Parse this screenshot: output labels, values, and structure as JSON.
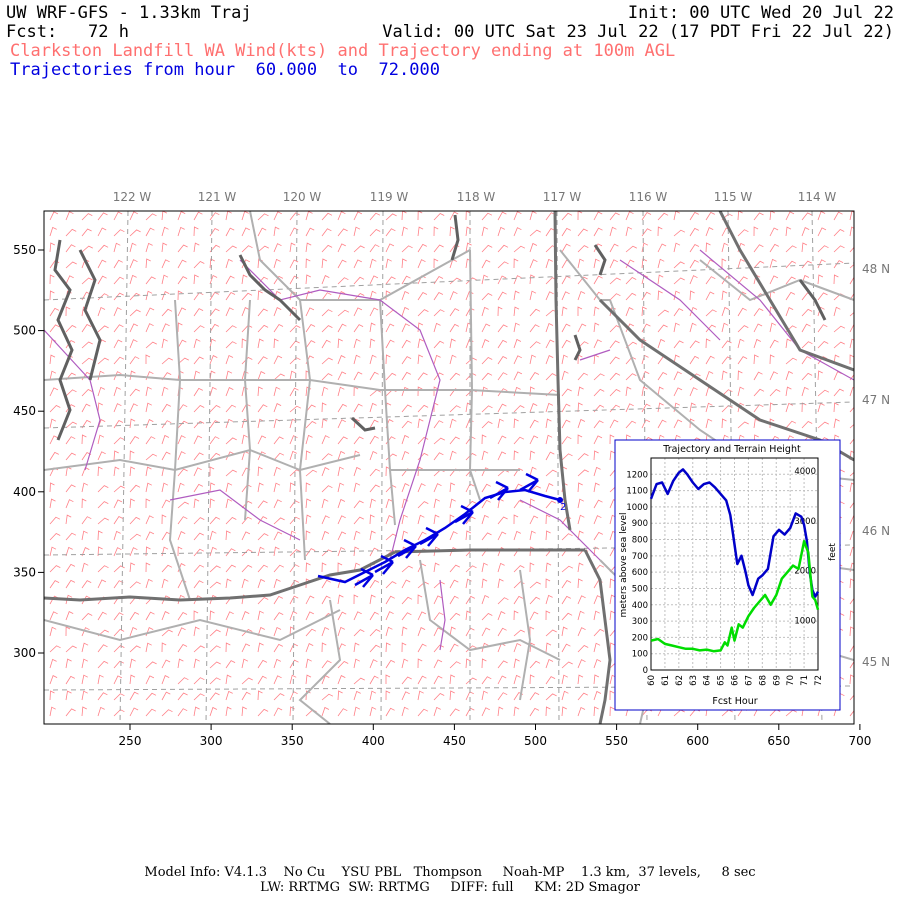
{
  "header": {
    "model_title": "UW WRF-GFS - 1.33km Traj",
    "init": "Init: 00 UTC Wed 20 Jul 22",
    "fcst_label": "Fcst:",
    "fcst_value": "72 h",
    "valid": "Valid: 00 UTC Sat 23 Jul 22 (17 PDT Fri 22 Jul 22)",
    "product": "Clarkston Landfill WA Wind(kts) and Trajectory ending at 100m AGL",
    "traj_prefix": "Trajectories from hour",
    "traj_from": "60.000",
    "traj_to_word": "to",
    "traj_to": "72.000"
  },
  "map": {
    "x_ticks": [
      "250",
      "300",
      "350",
      "400",
      "450",
      "500",
      "550",
      "600",
      "650",
      "700"
    ],
    "y_ticks": [
      "300",
      "350",
      "400",
      "450",
      "500",
      "550"
    ],
    "lon_labels": [
      "122 W",
      "121 W",
      "120 W",
      "119 W",
      "118 W",
      "117 W",
      "116 W",
      "115 W",
      "114 W"
    ],
    "lat_labels": [
      "45 N",
      "46 N",
      "47 N",
      "48 N"
    ],
    "colors": {
      "barbs": "#ff7f86",
      "counties": "#b0b0b0",
      "states": "#707070",
      "rivers": "#b05cc0",
      "trajectory": "#0000e0",
      "grid": "#a0a0a0"
    },
    "trajectory_endpoint_label": "2"
  },
  "inset": {
    "title": "Trajectory and Terrain Height",
    "ylabel_left": "meters above sea level",
    "ylabel_right": "feet",
    "xlabel": "Fcst Hour",
    "y_ticks_left": [
      "0",
      "100",
      "200",
      "300",
      "400",
      "500",
      "600",
      "700",
      "800",
      "900",
      "1000",
      "1100",
      "1200"
    ],
    "y_ticks_right": [
      "1000",
      "2000",
      "3000",
      "4000"
    ],
    "x_ticks": [
      "60",
      "61",
      "62",
      "63",
      "64",
      "65",
      "66",
      "67",
      "68",
      "69",
      "70",
      "71",
      "72"
    ],
    "trajectory_color": "#0000c8",
    "terrain_color": "#00dd00"
  },
  "chart_data": {
    "type": "line",
    "title": "Trajectory and Terrain Height",
    "xlabel": "Fcst Hour",
    "ylabel": "meters above sea level",
    "ylabel_right": "feet",
    "xlim": [
      60,
      72
    ],
    "ylim": [
      0,
      1300
    ],
    "series": [
      {
        "points_x": [
          60,
          60.4,
          60.8,
          61.2,
          61.6,
          62.0,
          62.3,
          62.6,
          63.0,
          63.4,
          63.8,
          64.2,
          64.6,
          65.0,
          65.4,
          65.7,
          66.0,
          66.2,
          66.5,
          66.8,
          67.0,
          67.3,
          67.7,
          68.0,
          68.4,
          68.8,
          69.2,
          69.6,
          70.0,
          70.4,
          70.8,
          71.0,
          71.2,
          71.4,
          71.6,
          71.8,
          72.0
        ],
        "values": [
          1050,
          1140,
          1150,
          1080,
          1160,
          1210,
          1230,
          1200,
          1150,
          1110,
          1140,
          1150,
          1120,
          1080,
          1040,
          950,
          770,
          650,
          700,
          600,
          520,
          460,
          560,
          580,
          620,
          820,
          860,
          830,
          870,
          960,
          940,
          890,
          790,
          600,
          490,
          450,
          480
        ]
      },
      {
        "points_x": [
          60,
          60.5,
          61,
          61.5,
          62,
          62.5,
          63,
          63.5,
          64,
          64.5,
          65,
          65.3,
          65.5,
          65.8,
          66.0,
          66.3,
          66.6,
          67.0,
          67.4,
          67.8,
          68.2,
          68.6,
          69.0,
          69.4,
          69.8,
          70.2,
          70.6,
          71.0,
          71.3,
          71.6,
          71.8,
          72.0
        ],
        "values": [
          180,
          190,
          160,
          150,
          140,
          130,
          130,
          120,
          125,
          115,
          120,
          170,
          150,
          260,
          180,
          280,
          260,
          330,
          380,
          420,
          460,
          400,
          460,
          560,
          600,
          640,
          620,
          790,
          720,
          450,
          430,
          370
        ]
      }
    ]
  }
}
